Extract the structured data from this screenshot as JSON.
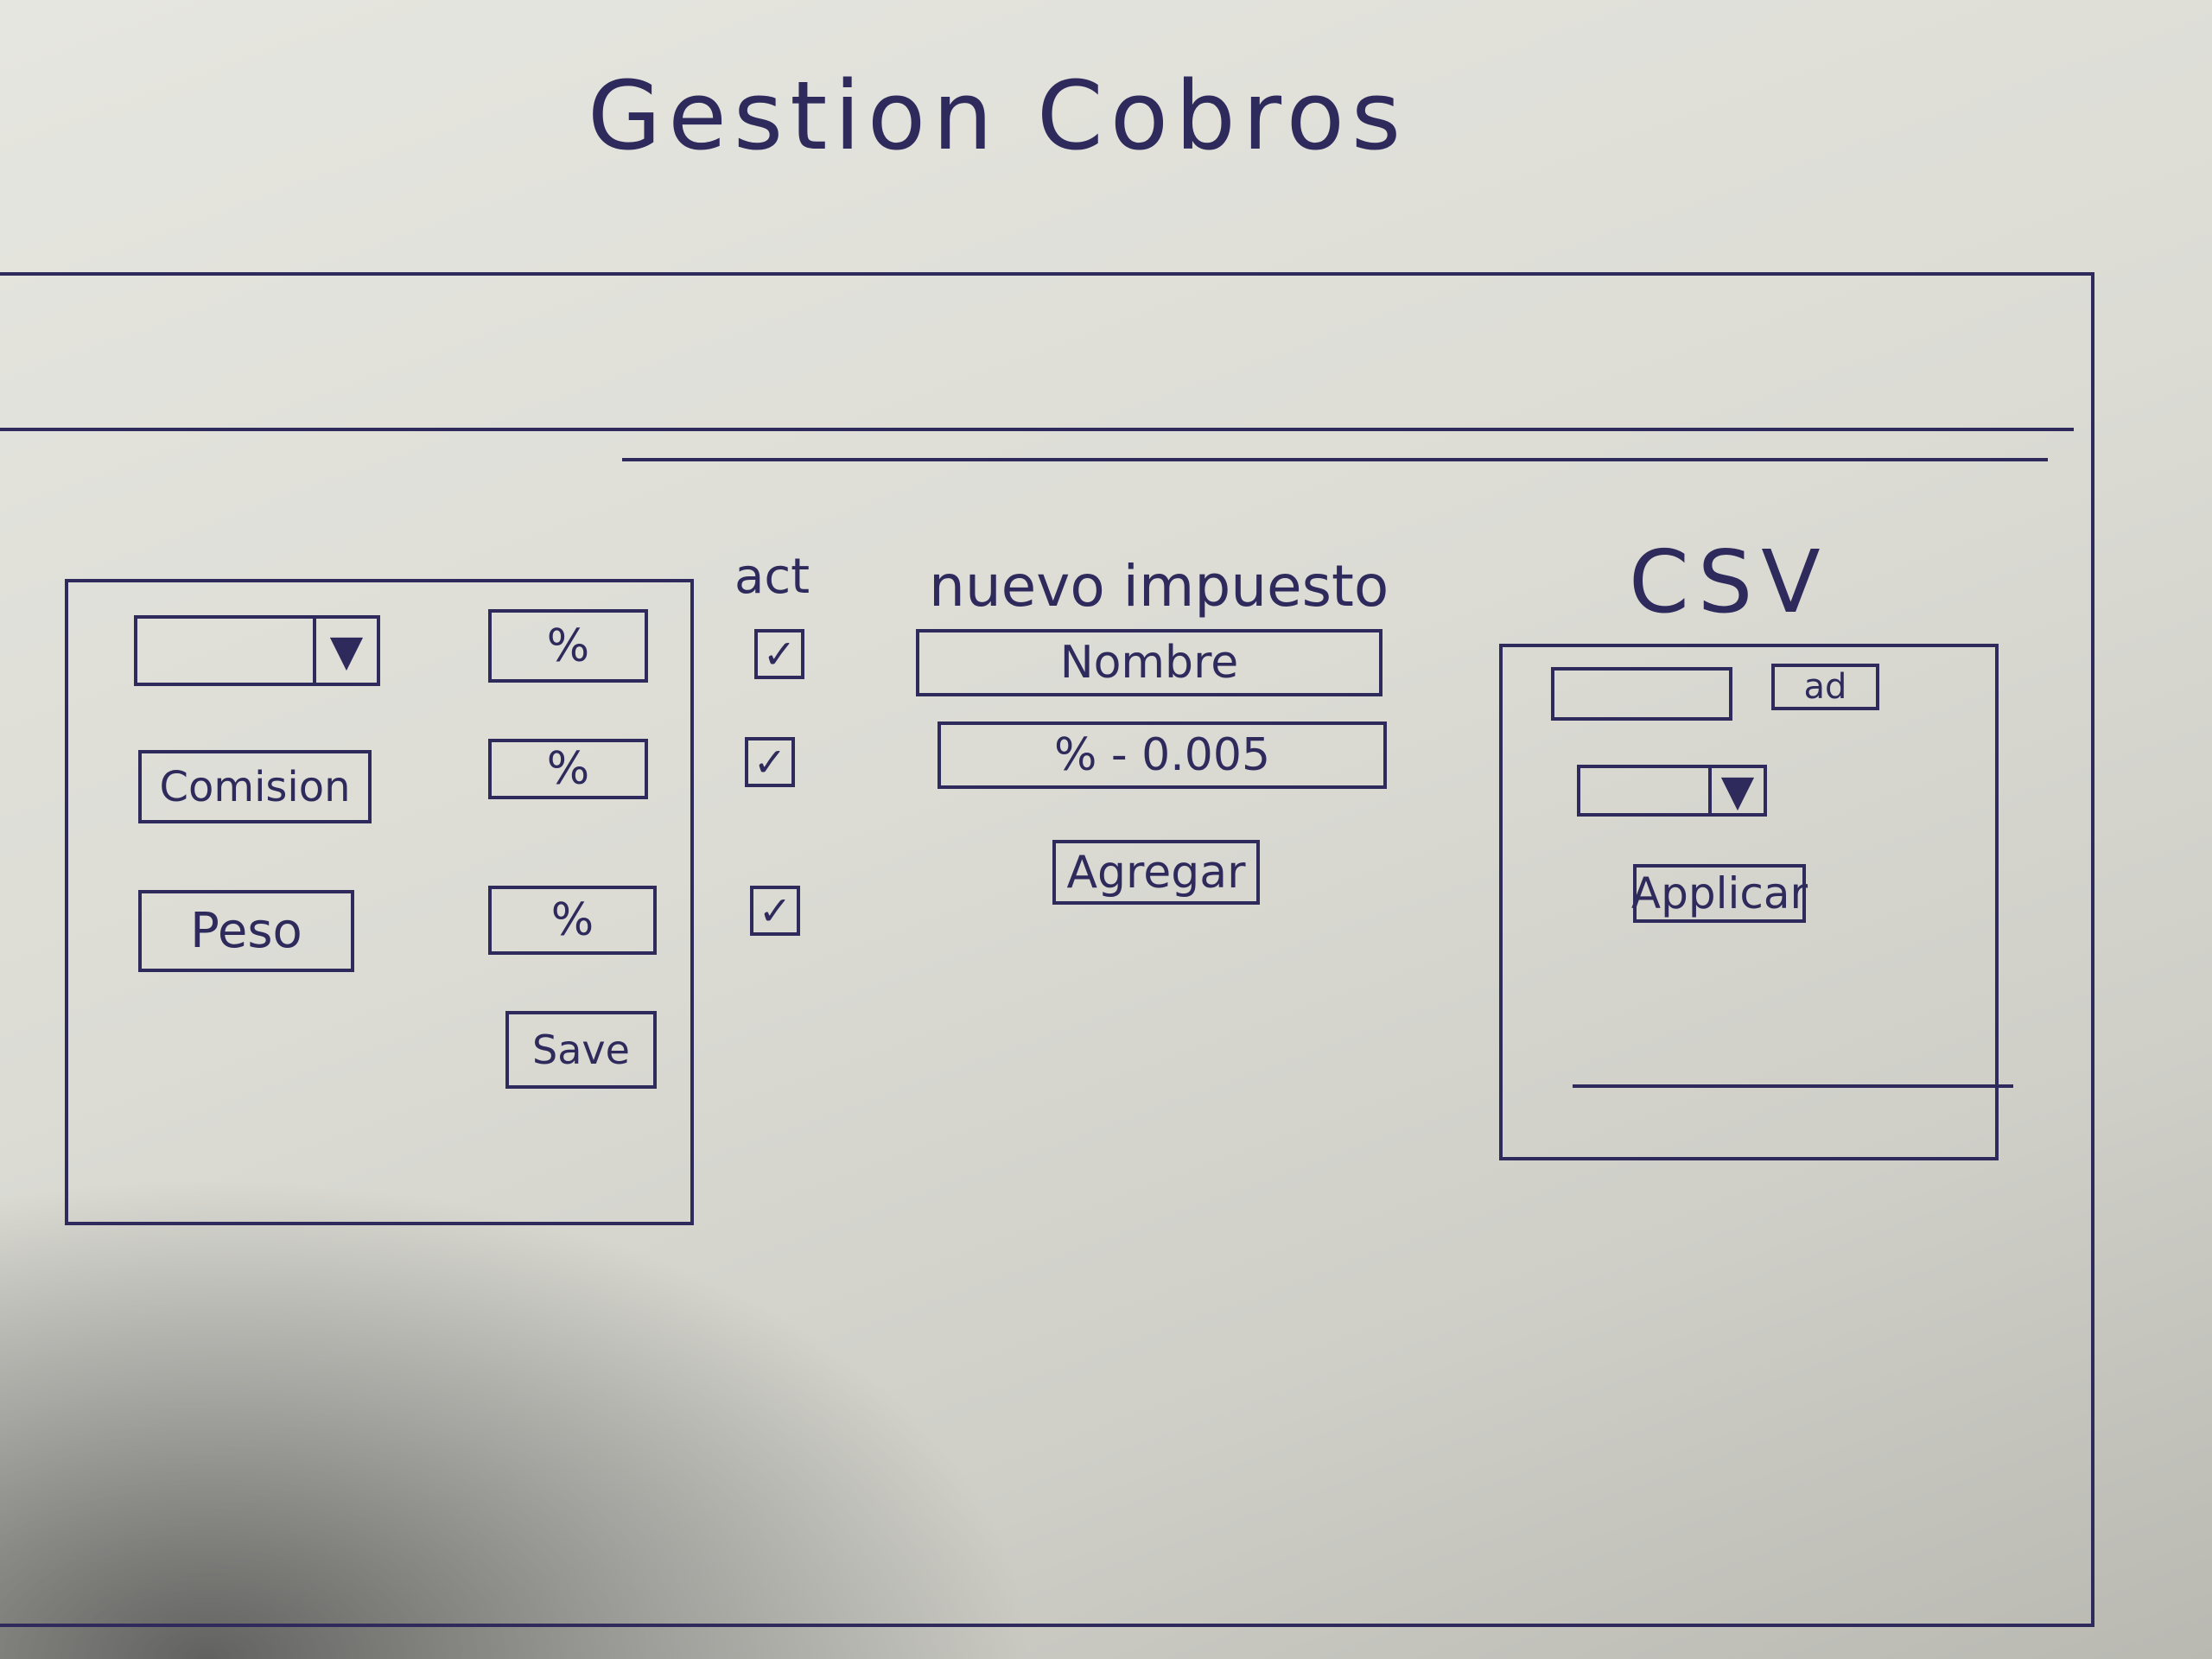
{
  "app": {
    "title": "Gestion Cobros"
  },
  "taxes": {
    "rows": [
      {
        "name": "",
        "type": "dropdown",
        "percent": "%",
        "active": true
      },
      {
        "name": "Comision",
        "type": "text",
        "percent": "%",
        "active": true
      },
      {
        "name": "Peso",
        "type": "text",
        "percent": "%",
        "active": true
      }
    ],
    "active_header": "act",
    "save_label": "Save"
  },
  "new_tax": {
    "heading": "nuevo impuesto",
    "name_placeholder": "Nombre",
    "percent_placeholder": "% - 0.005",
    "add_label": "Agregar"
  },
  "csv": {
    "heading": "CSV",
    "file_label": "ad",
    "apply_label": "Applicar"
  },
  "icons": {
    "dropdown": "chevron-down-icon",
    "checkbox": "checkbox-checked-icon"
  },
  "colors": {
    "ink": "#2e2a5c",
    "paper": "#e6e6e0"
  }
}
